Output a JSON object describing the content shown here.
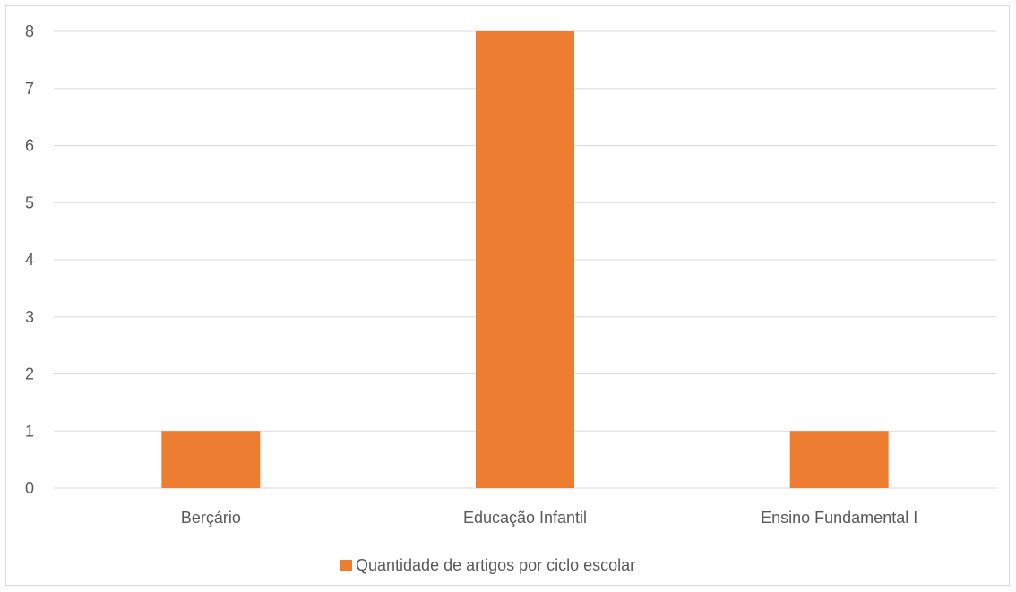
{
  "chart_data": {
    "type": "bar",
    "title": "",
    "xlabel": "",
    "ylabel": "",
    "categories": [
      "Berçário",
      "Educação Infantil",
      "Ensino Fundamental I"
    ],
    "series": [
      {
        "name": "Quantidade de artigos por ciclo escolar",
        "values": [
          1,
          8,
          1
        ],
        "color": "#ED7D31"
      }
    ],
    "ylim": [
      0,
      8
    ],
    "yticks": [
      "0",
      "1",
      "2",
      "3",
      "4",
      "5",
      "6",
      "7",
      "8"
    ],
    "grid": true,
    "legend_position": "bottom",
    "colors": {
      "gridline": "#D9D9D9",
      "text": "#595959",
      "border": "#D9D9D9"
    }
  }
}
